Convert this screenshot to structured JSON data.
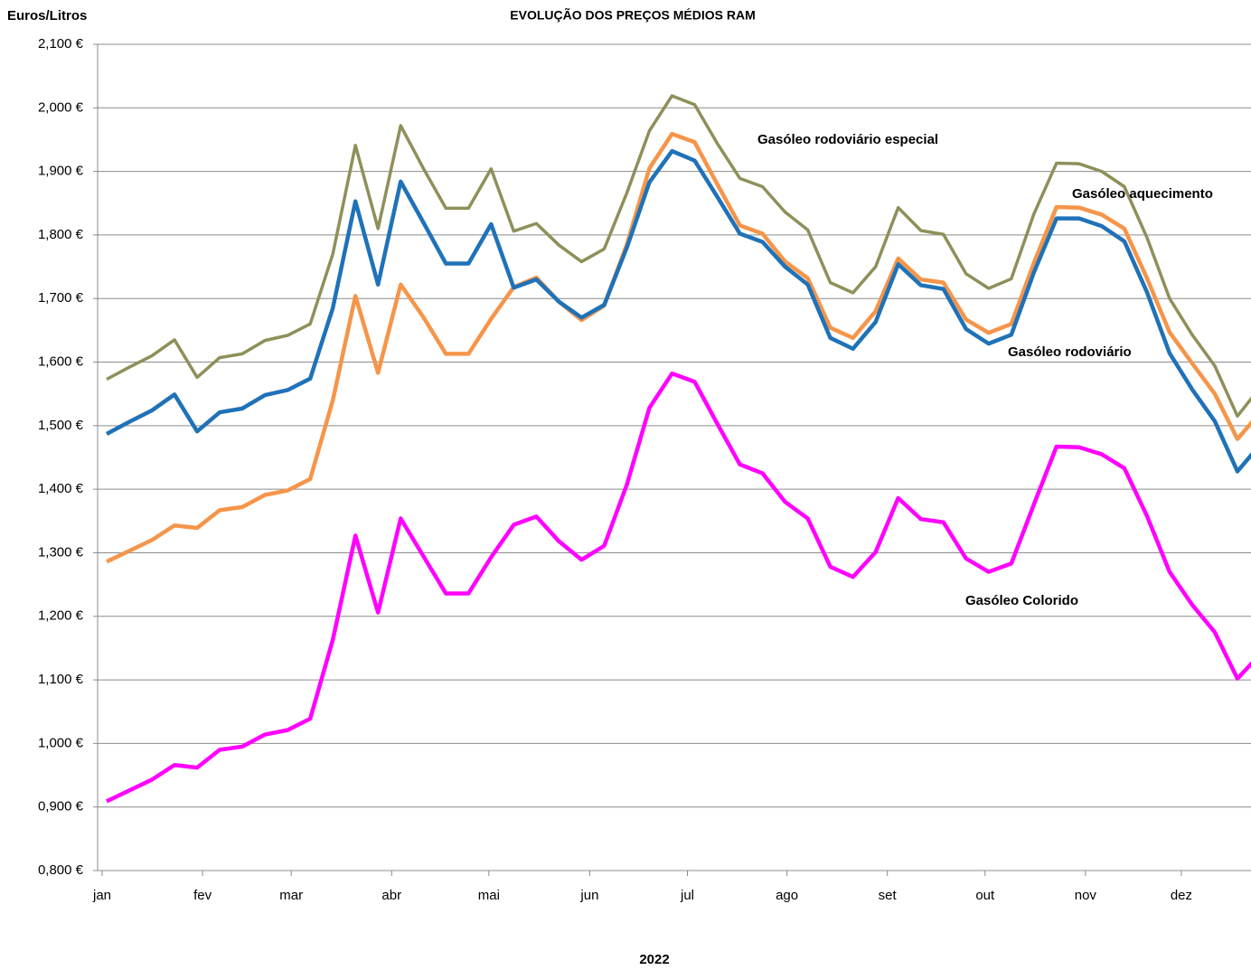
{
  "chart_data": {
    "type": "line",
    "title": "EVOLUÇÃO DOS PREÇOS MÉDIOS RAM",
    "y_label": "Euros/Litros",
    "x_label": "2022",
    "x": [
      0,
      1,
      2,
      3,
      4,
      5,
      6,
      7,
      8,
      9,
      10,
      11,
      12,
      13,
      14,
      15,
      16,
      17,
      18,
      19,
      20,
      21,
      22,
      23,
      24,
      25,
      26,
      27,
      28,
      29,
      30,
      31,
      32,
      33,
      34,
      35,
      36,
      37,
      38,
      39,
      40,
      41,
      42,
      43,
      44,
      45,
      46,
      47,
      48,
      49,
      50,
      51
    ],
    "xlim": [
      -0.4,
      50.6
    ],
    "xticks": [
      {
        "value": -0.2,
        "label": "jan"
      },
      {
        "value": 4.24,
        "label": "fev"
      },
      {
        "value": 8.16,
        "label": "mar"
      },
      {
        "value": 12.6,
        "label": "abr"
      },
      {
        "value": 16.9,
        "label": "mai"
      },
      {
        "value": 21.36,
        "label": "jun"
      },
      {
        "value": 25.68,
        "label": "jul"
      },
      {
        "value": 30.08,
        "label": "ago"
      },
      {
        "value": 34.52,
        "label": "set"
      },
      {
        "value": 38.84,
        "label": "out"
      },
      {
        "value": 43.28,
        "label": "nov"
      },
      {
        "value": 47.52,
        "label": "dez"
      }
    ],
    "ylim": [
      0.8,
      2.1
    ],
    "yticks": [
      {
        "value": 0.8,
        "label": "0,800 €"
      },
      {
        "value": 0.9,
        "label": "0,900 €"
      },
      {
        "value": 1.0,
        "label": "1,000 €"
      },
      {
        "value": 1.1,
        "label": "1,100 €"
      },
      {
        "value": 1.2,
        "label": "1,200 €"
      },
      {
        "value": 1.3,
        "label": "1,300 €"
      },
      {
        "value": 1.4,
        "label": "1,400 €"
      },
      {
        "value": 1.5,
        "label": "1,500 €"
      },
      {
        "value": 1.6,
        "label": "1,600 €"
      },
      {
        "value": 1.7,
        "label": "1,700 €"
      },
      {
        "value": 1.8,
        "label": "1,800 €"
      },
      {
        "value": 1.9,
        "label": "1,900 €"
      },
      {
        "value": 2.0,
        "label": "2,000 €"
      },
      {
        "value": 2.1,
        "label": "2,100 €"
      }
    ],
    "grid": true,
    "series": [
      {
        "name": "Gasóleo rodoviário especial",
        "color": "#8f8f5a",
        "values": [
          1.573,
          1.592,
          1.61,
          1.635,
          1.576,
          1.607,
          1.613,
          1.634,
          1.642,
          1.66,
          1.77,
          1.941,
          1.81,
          1.972,
          1.905,
          1.842,
          1.842,
          1.904,
          1.806,
          1.818,
          1.784,
          1.758,
          1.778,
          1.866,
          1.964,
          2.019,
          2.005,
          1.944,
          1.889,
          1.876,
          1.836,
          1.808,
          1.725,
          1.709,
          1.75,
          1.843,
          1.807,
          1.801,
          1.739,
          1.716,
          1.731,
          1.833,
          1.913,
          1.912,
          1.9,
          1.876,
          1.796,
          1.7,
          1.643,
          1.594,
          1.515,
          1.56
        ]
      },
      {
        "name": "Gasóleo aquecimento",
        "color": "#f5954a",
        "values": [
          1.286,
          1.303,
          1.32,
          1.343,
          1.339,
          1.367,
          1.372,
          1.391,
          1.398,
          1.416,
          1.54,
          1.704,
          1.583,
          1.722,
          1.671,
          1.613,
          1.613,
          1.668,
          1.718,
          1.733,
          1.695,
          1.666,
          1.689,
          1.785,
          1.905,
          1.959,
          1.946,
          1.88,
          1.815,
          1.802,
          1.758,
          1.732,
          1.654,
          1.638,
          1.68,
          1.763,
          1.73,
          1.725,
          1.667,
          1.646,
          1.66,
          1.756,
          1.844,
          1.843,
          1.832,
          1.81,
          1.732,
          1.647,
          1.598,
          1.55,
          1.479,
          1.52
        ]
      },
      {
        "name": "Gasóleo rodoviário",
        "color": "#1f72b8",
        "values": [
          1.487,
          1.506,
          1.524,
          1.549,
          1.491,
          1.521,
          1.527,
          1.548,
          1.556,
          1.574,
          1.685,
          1.853,
          1.722,
          1.884,
          1.82,
          1.755,
          1.755,
          1.817,
          1.717,
          1.73,
          1.695,
          1.67,
          1.69,
          1.78,
          1.883,
          1.932,
          1.917,
          1.86,
          1.802,
          1.789,
          1.75,
          1.722,
          1.638,
          1.621,
          1.663,
          1.754,
          1.721,
          1.715,
          1.652,
          1.629,
          1.643,
          1.741,
          1.826,
          1.826,
          1.814,
          1.79,
          1.71,
          1.614,
          1.557,
          1.507,
          1.428,
          1.47
        ]
      },
      {
        "name": "Gasóleo Colorido",
        "color": "#ff00ff",
        "values": [
          0.909,
          0.926,
          0.943,
          0.966,
          0.962,
          0.99,
          0.995,
          1.014,
          1.021,
          1.039,
          1.163,
          1.327,
          1.206,
          1.354,
          1.295,
          1.236,
          1.236,
          1.293,
          1.344,
          1.357,
          1.318,
          1.289,
          1.311,
          1.407,
          1.528,
          1.582,
          1.569,
          1.503,
          1.439,
          1.425,
          1.38,
          1.354,
          1.278,
          1.262,
          1.301,
          1.386,
          1.353,
          1.348,
          1.291,
          1.27,
          1.283,
          1.376,
          1.467,
          1.466,
          1.455,
          1.433,
          1.358,
          1.27,
          1.218,
          1.175,
          1.102,
          1.14
        ]
      }
    ]
  }
}
